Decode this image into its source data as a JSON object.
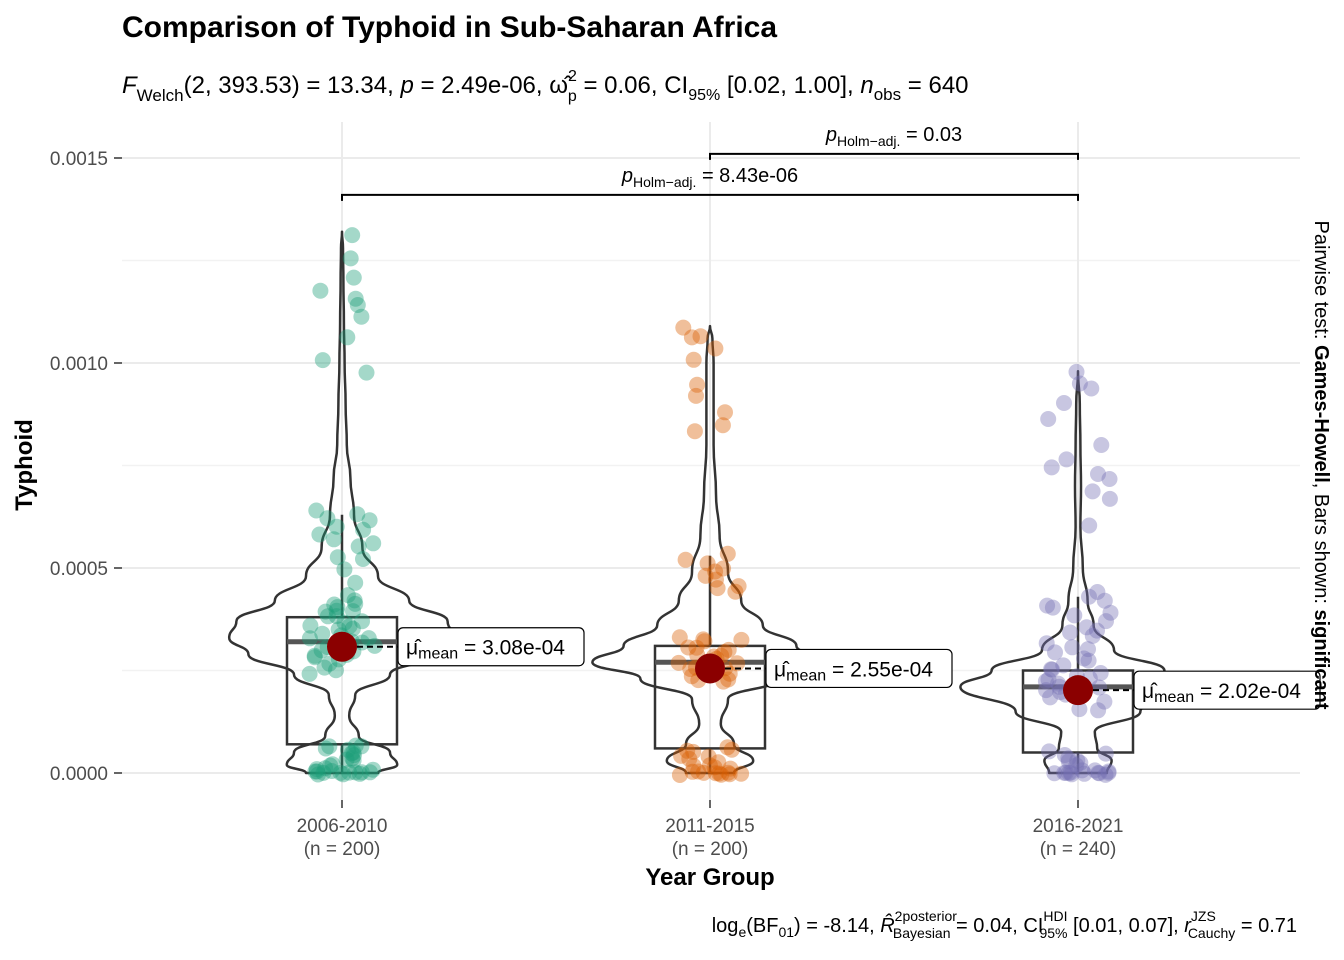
{
  "chart_data": {
    "type": "violin-box-scatter",
    "title": "Comparison of Typhoid in Sub-Saharan Africa",
    "subtitle": "F Welch (2, 393.53) = 13.34, p = 2.49e-06, ω̂²p = 0.06, CI95% [0.02, 1.00], n obs = 640",
    "subtitle_parts": {
      "f_stat": "F",
      "f_sub": "Welch",
      "df": "(2, 393.53)",
      "f_value": " = 13.34, ",
      "p_sym": "p",
      "p_value": " = 2.49e-06, ",
      "omega": "ω̂",
      "omega_sup": "2",
      "omega_sub": "p",
      "omega_value": " = 0.06, CI",
      "ci_sub": "95%",
      "ci_value": " [0.02, 1.00], ",
      "n_sym": "n",
      "n_sub": "obs",
      "n_value": " = 640"
    },
    "xlabel": "Year Group",
    "ylabel": "Typhoid",
    "ylim": [
      -7e-05,
      0.00158
    ],
    "yticks": [
      0.0,
      0.0005,
      0.001,
      0.0015
    ],
    "ytick_labels": [
      "0.0000",
      "0.0005",
      "0.0010",
      "0.0015"
    ],
    "categories": [
      "2006-2010",
      "2011-2015",
      "2016-2021"
    ],
    "category_n_labels": [
      "(n = 200)",
      "(n = 200)",
      "(n = 240)"
    ],
    "colors": [
      "#1B9E77",
      "#D95F02",
      "#7570B3"
    ],
    "mean_color": "#8B0000",
    "groups": [
      {
        "name": "2006-2010",
        "n": 200,
        "mean": 0.000308,
        "mean_label": "3.08e-04",
        "box": {
          "q1": 7e-05,
          "median": 0.00032,
          "q3": 0.00038,
          "whisker_low": 0.0,
          "whisker_high": 0.00063
        },
        "violin": [
          [
            0.0,
            0.3
          ],
          [
            2e-05,
            0.46
          ],
          [
            5e-05,
            0.4
          ],
          [
            9e-05,
            0.14
          ],
          [
            0.00014,
            0.06
          ],
          [
            0.00019,
            0.11
          ],
          [
            0.00024,
            0.4
          ],
          [
            0.00029,
            0.78
          ],
          [
            0.00033,
            0.94
          ],
          [
            0.00037,
            0.88
          ],
          [
            0.00042,
            0.56
          ],
          [
            0.00048,
            0.3
          ],
          [
            0.00055,
            0.17
          ],
          [
            0.00063,
            0.1
          ],
          [
            0.00072,
            0.07
          ],
          [
            0.0008,
            0.04
          ],
          [
            0.0009,
            0.03
          ],
          [
            0.001,
            0.022
          ],
          [
            0.0011,
            0.016
          ],
          [
            0.0012,
            0.012
          ],
          [
            0.00128,
            0.008
          ],
          [
            0.00132,
            0.0
          ]
        ],
        "points": [
          0.00131,
          0.00126,
          0.00121,
          0.00118,
          0.00116,
          0.00114,
          0.00111,
          0.00106,
          0.00101,
          0.00098,
          0.00064,
          0.00063,
          0.00062,
          0.00062,
          0.0006,
          0.00059,
          0.00058,
          0.00057,
          0.00056,
          0.00055,
          0.00053,
          0.00052,
          0.0005,
          0.00046,
          0.00043,
          0.00042,
          0.00041,
          0.00041,
          0.0004,
          0.0004,
          0.00039,
          0.00039,
          0.00038,
          0.00038,
          0.00037,
          0.00037,
          0.00036,
          0.00036,
          0.00035,
          0.00035,
          0.00034,
          0.00034,
          0.00033,
          0.00033,
          0.00032,
          0.00032,
          0.00031,
          0.00031,
          0.0003,
          0.0003,
          0.00029,
          0.00029,
          0.00028,
          0.00028,
          0.00027,
          0.00026,
          0.00025,
          0.00024,
          7e-05,
          7e-05,
          6e-05,
          6e-05,
          6e-05,
          5e-05,
          5e-05,
          4e-05,
          4e-05,
          3e-05,
          3e-05,
          2e-05,
          2e-05,
          1e-05,
          1e-05,
          1e-05,
          0.0,
          0.0,
          0.0,
          0.0,
          0.0,
          0.0,
          0.0,
          0.0,
          0.0,
          0.0,
          0.0,
          0.0
        ]
      },
      {
        "name": "2011-2015",
        "n": 200,
        "mean": 0.000255,
        "mean_label": "2.55e-04",
        "box": {
          "q1": 6e-05,
          "median": 0.00027,
          "q3": 0.00031,
          "whisker_low": 0.0,
          "whisker_high": 0.00053
        },
        "violin": [
          [
            0.0,
            0.2
          ],
          [
            3e-05,
            0.36
          ],
          [
            7e-05,
            0.2
          ],
          [
            0.00012,
            0.09
          ],
          [
            0.00018,
            0.15
          ],
          [
            0.00023,
            0.58
          ],
          [
            0.00027,
            0.98
          ],
          [
            0.00031,
            0.72
          ],
          [
            0.00036,
            0.44
          ],
          [
            0.00042,
            0.26
          ],
          [
            0.00049,
            0.15
          ],
          [
            0.00058,
            0.08
          ],
          [
            0.00068,
            0.05
          ],
          [
            0.0008,
            0.03
          ],
          [
            0.00092,
            0.03
          ],
          [
            0.001,
            0.03
          ],
          [
            0.00106,
            0.02
          ],
          [
            0.00109,
            0.0
          ]
        ],
        "points": [
          0.00109,
          0.00107,
          0.00106,
          0.00104,
          0.00101,
          0.00095,
          0.00092,
          0.00088,
          0.00085,
          0.00083,
          0.00053,
          0.00052,
          0.00051,
          0.0005,
          0.00049,
          0.00048,
          0.00047,
          0.00046,
          0.00045,
          0.00044,
          0.00033,
          0.00033,
          0.00032,
          0.00032,
          0.00031,
          0.00031,
          0.0003,
          0.0003,
          0.00029,
          0.00029,
          0.00028,
          0.00028,
          0.00027,
          0.00027,
          0.00026,
          0.00026,
          0.00025,
          0.00025,
          0.00024,
          0.00024,
          0.00023,
          0.00023,
          0.00022,
          6e-05,
          6e-05,
          5e-05,
          5e-05,
          4e-05,
          4e-05,
          3e-05,
          3e-05,
          2e-05,
          2e-05,
          1e-05,
          1e-05,
          0.0,
          0.0,
          0.0,
          0.0,
          0.0,
          0.0,
          0.0,
          0.0,
          0.0,
          0.0
        ]
      },
      {
        "name": "2016-2021",
        "n": 240,
        "mean": 0.000202,
        "mean_label": "2.02e-04",
        "box": {
          "q1": 5e-05,
          "median": 0.00021,
          "q3": 0.00025,
          "whisker_low": 0.0,
          "whisker_high": 0.00043
        },
        "violin": [
          [
            0.0,
            0.24
          ],
          [
            3e-05,
            0.28
          ],
          [
            6e-05,
            0.16
          ],
          [
            0.0001,
            0.14
          ],
          [
            0.00015,
            0.52
          ],
          [
            0.00021,
            0.98
          ],
          [
            0.00025,
            0.72
          ],
          [
            0.0003,
            0.3
          ],
          [
            0.00036,
            0.13
          ],
          [
            0.00042,
            0.08
          ],
          [
            0.0005,
            0.04
          ],
          [
            0.0006,
            0.02
          ],
          [
            0.0007,
            0.025
          ],
          [
            0.0008,
            0.02
          ],
          [
            0.0009,
            0.015
          ],
          [
            0.00098,
            0.0
          ]
        ],
        "points": [
          0.00098,
          0.00095,
          0.00094,
          0.0009,
          0.00086,
          0.0008,
          0.00076,
          0.00075,
          0.00073,
          0.00072,
          0.00069,
          0.00067,
          0.0006,
          0.00044,
          0.00043,
          0.00042,
          0.00041,
          0.0004,
          0.00039,
          0.00038,
          0.00037,
          0.00036,
          0.00035,
          0.00034,
          0.00033,
          0.00032,
          0.00031,
          0.0003,
          0.00029,
          0.00028,
          0.00027,
          0.00026,
          0.00025,
          0.00025,
          0.00024,
          0.00024,
          0.00023,
          0.00023,
          0.00022,
          0.00022,
          0.00021,
          0.00021,
          0.0002,
          0.0002,
          0.00019,
          0.00019,
          0.00018,
          0.00017,
          0.00016,
          0.00015,
          5e-05,
          5e-05,
          4e-05,
          4e-05,
          3e-05,
          3e-05,
          2e-05,
          2e-05,
          1e-05,
          1e-05,
          0.0,
          0.0,
          0.0,
          0.0,
          0.0,
          0.0,
          0.0,
          0.0,
          0.0,
          0.0,
          0.0,
          0.0
        ]
      }
    ],
    "comparisons": [
      {
        "from": 1,
        "to": 2,
        "y": 0.00151,
        "p_label": "= 0.03",
        "p_sym": "p",
        "p_sub": "Holm−adj."
      },
      {
        "from": 0,
        "to": 2,
        "y": 0.00141,
        "p_label": "= 8.43e-06",
        "p_sym": "p",
        "p_sub": "Holm−adj."
      }
    ],
    "side_note": {
      "prefix": "Pairwise test: ",
      "method": "Games-Howell",
      "middle": ", Bars shown: ",
      "shown": "significant"
    },
    "caption_parts": {
      "log": "log",
      "log_sub": "e",
      "bf": "(BF",
      "bf_sub": "01",
      "bf_value": ") = -8.14, ",
      "r": "R̂",
      "r_sup": "2",
      "r_sup2": "posterior",
      "r_sub": "Bayesian",
      "r_value": " = 0.04, CI",
      "ci_sup": "HDI",
      "ci_sub": "95%",
      "ci_value": " [0.01, 0.07], ",
      "rc": "r",
      "rc_sup": "JZS",
      "rc_sub": "Cauchy",
      "rc_value": " = 0.71"
    }
  }
}
